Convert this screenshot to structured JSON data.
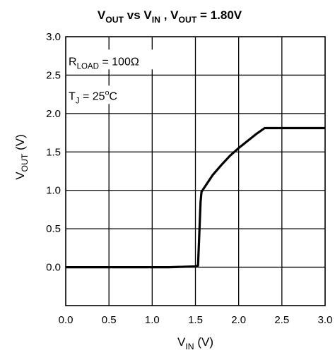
{
  "chart_data": {
    "type": "line",
    "title": {
      "parts": [
        {
          "text": "V"
        },
        {
          "text": "OUT",
          "sub": true
        },
        {
          "text": " vs V"
        },
        {
          "text": "IN",
          "sub": true
        },
        {
          "text": " , V"
        },
        {
          "text": "OUT",
          "sub": true
        },
        {
          "text": " = 1.80V"
        }
      ]
    },
    "xlabel": {
      "parts": [
        {
          "text": "V"
        },
        {
          "text": "IN",
          "sub": true
        },
        {
          "text": " (V)"
        }
      ]
    },
    "ylabel": {
      "parts": [
        {
          "text": "V"
        },
        {
          "text": "OUT",
          "sub": true
        },
        {
          "text": " (V)"
        }
      ]
    },
    "xlim": [
      0.0,
      3.0
    ],
    "ylim": [
      -0.5,
      3.0
    ],
    "x_ticks": [
      {
        "value": 0.0,
        "label": "0.0"
      },
      {
        "value": 0.5,
        "label": "0.5"
      },
      {
        "value": 1.0,
        "label": "1.0"
      },
      {
        "value": 1.5,
        "label": "1.5"
      },
      {
        "value": 2.0,
        "label": "2.0"
      },
      {
        "value": 2.5,
        "label": "2.5"
      },
      {
        "value": 3.0,
        "label": "3.0"
      }
    ],
    "y_ticks": [
      {
        "value": 0.0,
        "label": "0.0"
      },
      {
        "value": 0.5,
        "label": "0.5"
      },
      {
        "value": 1.0,
        "label": "1.0"
      },
      {
        "value": 1.5,
        "label": "1.5"
      },
      {
        "value": 2.0,
        "label": "2.0"
      },
      {
        "value": 2.5,
        "label": "2.5"
      },
      {
        "value": 3.0,
        "label": "3.0"
      }
    ],
    "grid": true,
    "legend": "none",
    "annotations": [
      {
        "parts": [
          {
            "text": "R"
          },
          {
            "text": "LOAD",
            "sub": true
          },
          {
            "text": " = 100Ω"
          }
        ]
      },
      {
        "parts": [
          {
            "text": "T"
          },
          {
            "text": "J",
            "sub": true
          },
          {
            "text": " = 25"
          },
          {
            "text": "o",
            "sup": true
          },
          {
            "text": "C"
          }
        ]
      }
    ],
    "series": [
      {
        "color": "#000000",
        "points": [
          [
            0.0,
            0.0
          ],
          [
            1.2,
            0.0
          ],
          [
            1.5,
            0.01
          ],
          [
            1.53,
            0.02
          ],
          [
            1.56,
            0.85
          ],
          [
            1.57,
            0.98
          ],
          [
            1.6,
            1.03
          ],
          [
            1.7,
            1.2
          ],
          [
            1.8,
            1.33
          ],
          [
            1.9,
            1.45
          ],
          [
            2.0,
            1.55
          ],
          [
            2.1,
            1.64
          ],
          [
            2.2,
            1.73
          ],
          [
            2.3,
            1.81
          ],
          [
            3.0,
            1.81
          ]
        ]
      }
    ]
  }
}
